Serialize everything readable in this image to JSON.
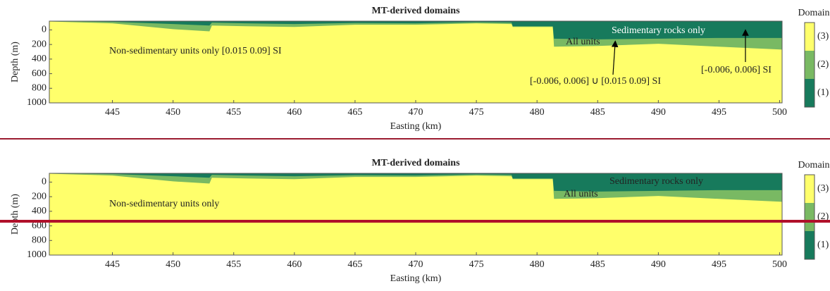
{
  "chart_data": [
    {
      "type": "area",
      "title": "MT-derived domains",
      "x_label": "Easting (km)",
      "y_label": "Depth (m)",
      "legend_title": "Domain",
      "x": [
        439.8,
        445,
        450,
        453,
        453.2,
        456,
        460,
        465,
        470,
        475,
        477.9,
        478,
        481.3,
        481.4,
        485,
        490,
        495,
        500.2
      ],
      "series": [
        {
          "name": "(3)",
          "color": "#ffff6b",
          "values": [
            1000,
            1000,
            1000,
            1000,
            1000,
            1000,
            1000,
            1000,
            1000,
            1000,
            1000,
            1000,
            1000,
            1000,
            1000,
            1000,
            1000,
            1000
          ]
        },
        {
          "name": "(2)",
          "color": "#79b963",
          "values": [
            -115,
            -90,
            -10,
            20,
            -60,
            -50,
            -40,
            -70,
            -70,
            -90,
            -80,
            -40,
            -40,
            230,
            220,
            190,
            230,
            270
          ]
        },
        {
          "name": "(1)",
          "color": "#177a5c",
          "values": [
            -120,
            -110,
            -80,
            -60,
            -100,
            -90,
            -80,
            -95,
            -90,
            -105,
            -100,
            -50,
            -50,
            120,
            130,
            120,
            110,
            110
          ]
        }
      ],
      "xlim": [
        439.8,
        500.2
      ],
      "ylim": [
        1000,
        -120
      ],
      "xticks": [
        445,
        450,
        455,
        460,
        465,
        470,
        475,
        480,
        485,
        490,
        495,
        500
      ],
      "yticks": [
        0,
        200,
        400,
        600,
        800,
        1000
      ],
      "annotations": [
        "Non-sedimentary units only [0.015 0.09] SI",
        "Sedimentary rocks only",
        "All units",
        "[-0.006, 0.006] ∪ [0.015 0.09] SI",
        "[-0.006, 0.006] SI"
      ]
    },
    {
      "type": "area",
      "title": "MT-derived domains",
      "x_label": "Easting (km)",
      "y_label": "Depth (m)",
      "legend_title": "Domain",
      "x": [
        439.8,
        445,
        450,
        453,
        453.2,
        456,
        460,
        465,
        470,
        475,
        477.9,
        478,
        481.3,
        481.4,
        485,
        490,
        495,
        500.2
      ],
      "series": [
        {
          "name": "(3)",
          "color": "#ffff6b",
          "values": [
            1000,
            1000,
            1000,
            1000,
            1000,
            1000,
            1000,
            1000,
            1000,
            1000,
            1000,
            1000,
            1000,
            1000,
            1000,
            1000,
            1000,
            1000
          ]
        },
        {
          "name": "(2)",
          "color": "#79b963",
          "values": [
            -115,
            -90,
            -10,
            20,
            -60,
            -50,
            -40,
            -70,
            -70,
            -90,
            -80,
            -40,
            -40,
            230,
            220,
            190,
            230,
            270
          ]
        },
        {
          "name": "(1)",
          "color": "#177a5c",
          "values": [
            -120,
            -110,
            -80,
            -60,
            -100,
            -90,
            -80,
            -95,
            -90,
            -105,
            -100,
            -50,
            -50,
            120,
            130,
            120,
            110,
            110
          ]
        }
      ],
      "xlim": [
        439.8,
        500.2
      ],
      "ylim": [
        1000,
        -120
      ],
      "xticks": [
        445,
        450,
        455,
        460,
        465,
        470,
        475,
        480,
        485,
        490,
        495,
        500
      ],
      "yticks": [
        0,
        200,
        400,
        600,
        800,
        1000
      ],
      "annotations": [
        "Non-sedimentary units only",
        "Sedimentary rocks only",
        "All units"
      ]
    }
  ]
}
